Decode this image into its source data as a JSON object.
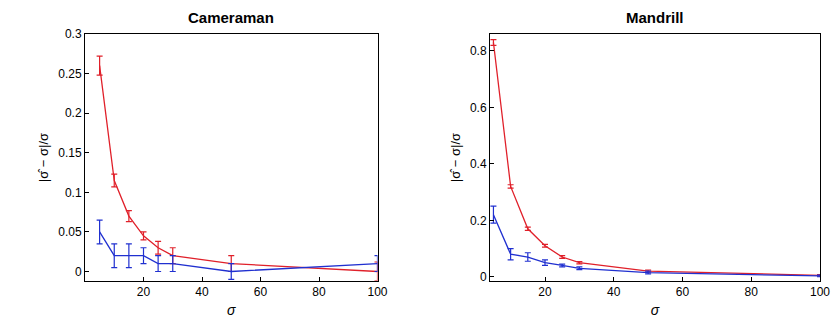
{
  "chart_data": [
    {
      "type": "line",
      "title": "Cameraman",
      "x_label": "σ",
      "y_label": "|σ̂ − σ|/σ",
      "x": [
        5,
        10,
        15,
        20,
        25,
        30,
        50,
        100
      ],
      "series": [
        {
          "color": "#e0202a",
          "values": [
            0.26,
            0.115,
            0.07,
            0.045,
            0.03,
            0.02,
            0.01,
            0.0
          ],
          "error": [
            0.012,
            0.008,
            0.007,
            0.005,
            0.008,
            0.01,
            0.01,
            0.012
          ]
        },
        {
          "color": "#2030d0",
          "values": [
            0.05,
            0.02,
            0.02,
            0.02,
            0.01,
            0.01,
            0.0,
            0.01
          ],
          "error": [
            0.015,
            0.015,
            0.015,
            0.01,
            0.01,
            0.01,
            0.01,
            0.01
          ]
        }
      ],
      "xlim": [
        0,
        100
      ],
      "xticks": [
        20,
        40,
        60,
        80,
        100
      ],
      "ylim": [
        -0.012,
        0.3
      ],
      "yticks": [
        0,
        0.05,
        0.1,
        0.15,
        0.2,
        0.25,
        0.3
      ],
      "grid": false
    },
    {
      "type": "line",
      "title": "Mandrill",
      "x_label": "σ",
      "y_label": "|σ̂ − σ|/σ",
      "x": [
        5,
        10,
        15,
        20,
        25,
        30,
        50,
        100
      ],
      "series": [
        {
          "color": "#e0202a",
          "values": [
            0.83,
            0.32,
            0.17,
            0.11,
            0.07,
            0.05,
            0.02,
            0.005
          ],
          "error": [
            0.01,
            0.006,
            0.006,
            0.005,
            0.005,
            0.004,
            0.004,
            0.003
          ]
        },
        {
          "color": "#2030d0",
          "values": [
            0.22,
            0.08,
            0.07,
            0.05,
            0.04,
            0.03,
            0.015,
            0.003
          ],
          "error": [
            0.03,
            0.02,
            0.015,
            0.01,
            0.005,
            0.005,
            0.005,
            0.003
          ]
        }
      ],
      "xlim": [
        4,
        100
      ],
      "xticks": [
        20,
        40,
        60,
        80,
        100
      ],
      "ylim": [
        -0.015,
        0.86
      ],
      "yticks": [
        0,
        0.2,
        0.4,
        0.6,
        0.8
      ],
      "grid": false
    }
  ]
}
